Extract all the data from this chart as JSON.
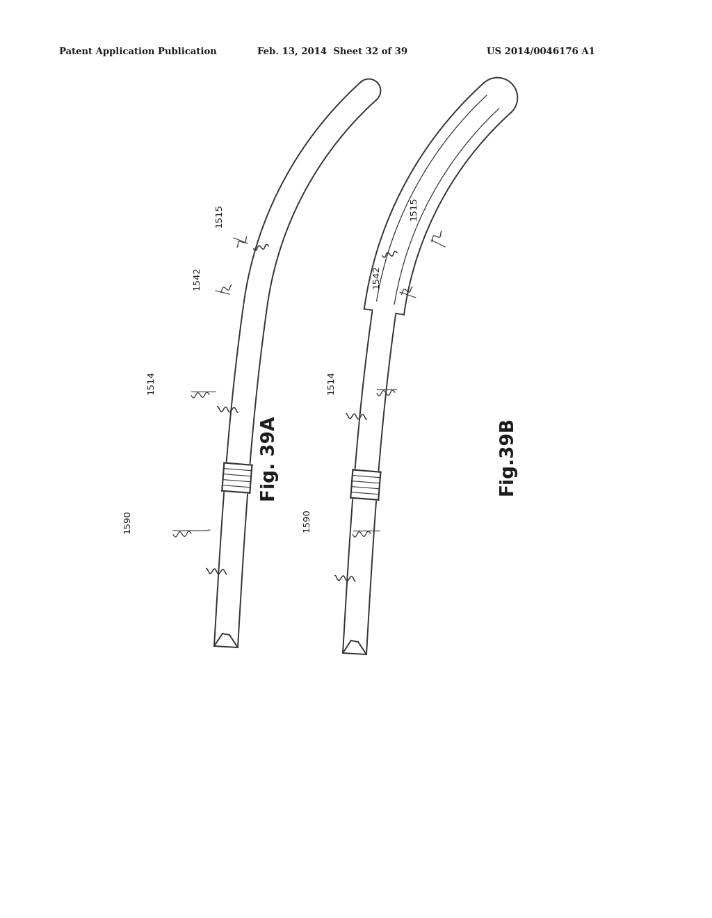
{
  "background_color": "#ffffff",
  "header_left": "Patent Application Publication",
  "header_center": "Feb. 13, 2014  Sheet 32 of 39",
  "header_right": "US 2014/0046176 A1",
  "fig_label_A": "Fig. 39A",
  "fig_label_B": "Fig.39B",
  "text_color": "#1a1a1a",
  "line_color": "#333333",
  "line_width": 1.4
}
